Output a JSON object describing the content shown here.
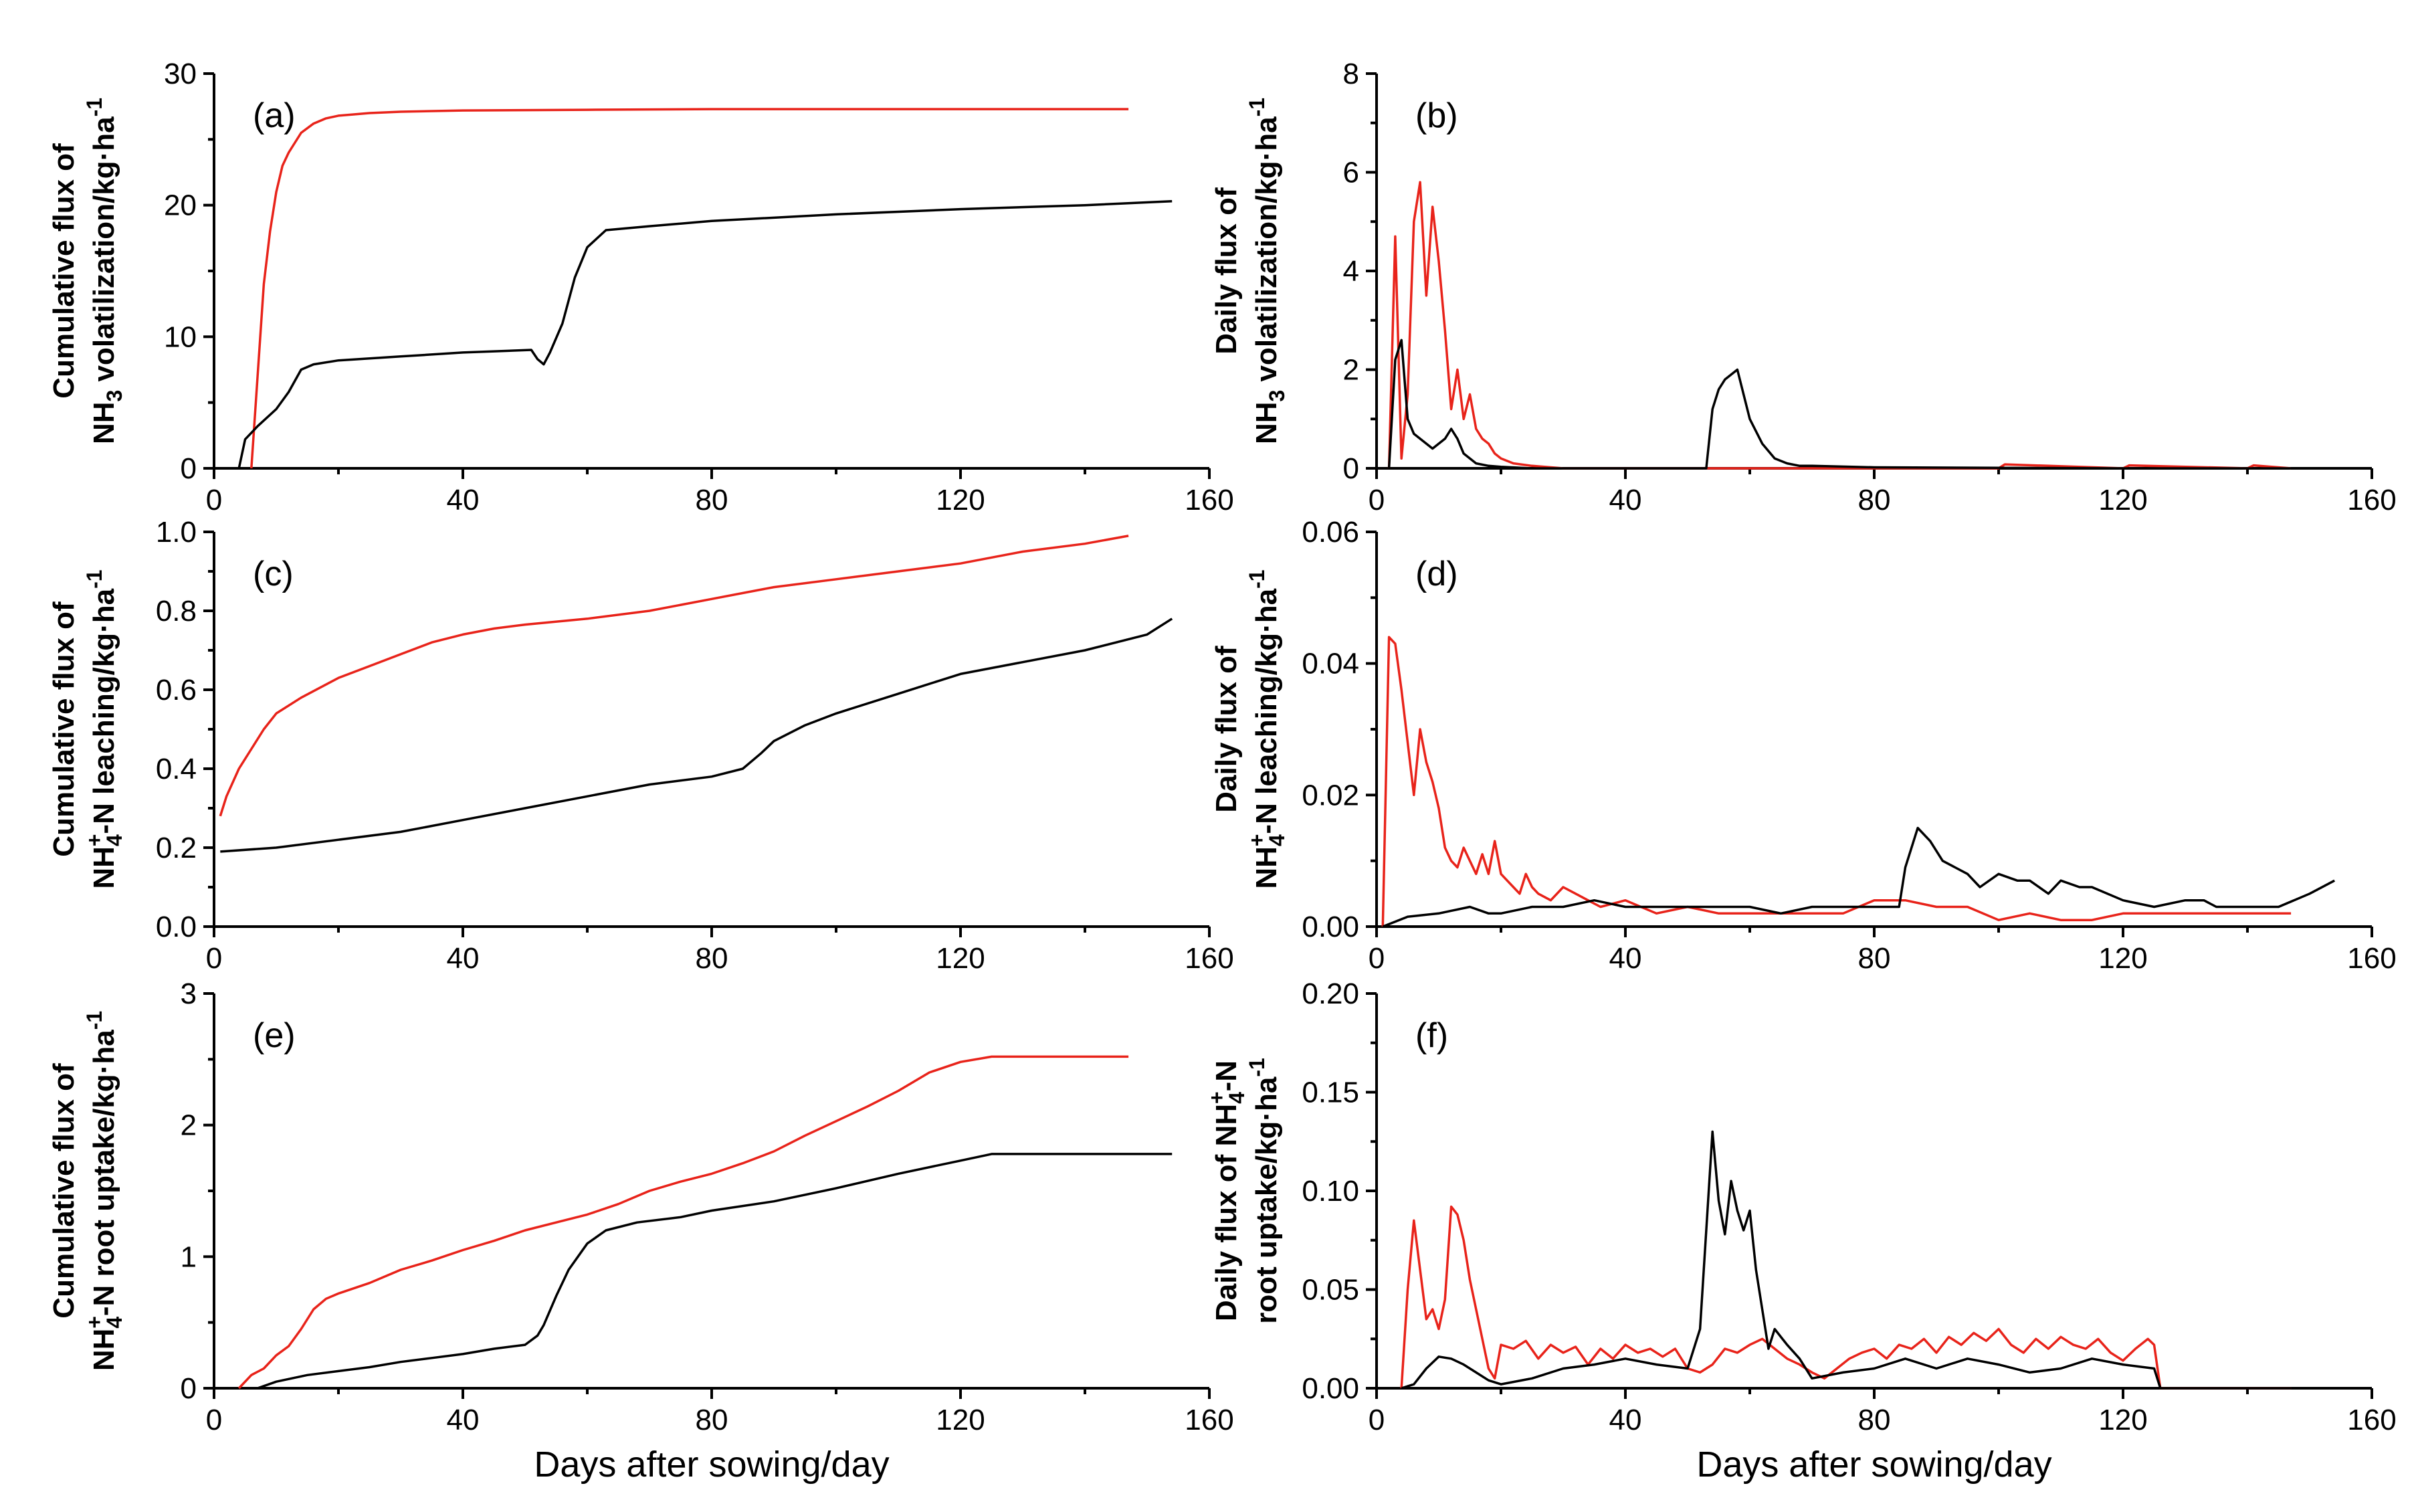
{
  "figure": {
    "xlabel": "Days after sowing/day",
    "series_colors": {
      "red": "#e8231a",
      "black": "#000000"
    }
  },
  "chart_data": [
    {
      "id": "a",
      "type": "line",
      "panel_label": "(a)",
      "ylabel_line1": "Cumulative flux of",
      "ylabel_line2": "NH3 volatilization/kg·ha-1",
      "xlim": [
        0,
        160
      ],
      "ylim": [
        0,
        30
      ],
      "xticks": [
        0,
        40,
        80,
        120,
        160
      ],
      "yticks": [
        0,
        10,
        20,
        30
      ],
      "series": [
        {
          "name": "red",
          "color": "#e8231a",
          "x": [
            6,
            7,
            8,
            9,
            10,
            11,
            12,
            14,
            16,
            18,
            20,
            25,
            30,
            40,
            60,
            80,
            100,
            120,
            140,
            147
          ],
          "y": [
            0,
            7,
            14,
            18,
            21,
            23,
            24,
            25.5,
            26.2,
            26.6,
            26.8,
            27,
            27.1,
            27.2,
            27.25,
            27.3,
            27.3,
            27.3,
            27.3,
            27.3
          ]
        },
        {
          "name": "black",
          "color": "#000000",
          "x": [
            4,
            5,
            7,
            10,
            12,
            14,
            16,
            20,
            30,
            40,
            51,
            52,
            53,
            54,
            56,
            58,
            60,
            63,
            70,
            80,
            100,
            120,
            140,
            154
          ],
          "y": [
            0,
            2.2,
            3.2,
            4.5,
            5.8,
            7.5,
            7.9,
            8.2,
            8.5,
            8.8,
            9.0,
            8.3,
            7.9,
            8.8,
            11,
            14.5,
            16.8,
            18.1,
            18.4,
            18.8,
            19.3,
            19.7,
            20.0,
            20.3
          ]
        }
      ]
    },
    {
      "id": "b",
      "type": "line",
      "panel_label": "(b)",
      "ylabel_line1": "Daily flux of",
      "ylabel_line2": "NH3 volatilization/kg·ha-1",
      "xlim": [
        0,
        160
      ],
      "ylim": [
        0,
        8
      ],
      "xticks": [
        0,
        40,
        80,
        120,
        160
      ],
      "yticks": [
        0,
        2,
        4,
        6,
        8
      ],
      "series": [
        {
          "name": "red",
          "color": "#e8231a",
          "x": [
            2,
            3,
            4,
            5,
            6,
            7,
            8,
            9,
            10,
            11,
            12,
            13,
            14,
            15,
            16,
            17,
            18,
            19,
            20,
            22,
            25,
            30,
            40,
            60,
            100,
            101,
            120,
            121,
            140,
            141,
            147
          ],
          "y": [
            0,
            4.7,
            0.2,
            1.5,
            5.0,
            5.8,
            3.5,
            5.3,
            4.2,
            2.8,
            1.2,
            2.0,
            1.0,
            1.5,
            0.8,
            0.6,
            0.5,
            0.3,
            0.2,
            0.1,
            0.05,
            0,
            0,
            0,
            0,
            0.08,
            0,
            0.06,
            0,
            0.06,
            0
          ]
        },
        {
          "name": "black",
          "color": "#000000",
          "x": [
            2,
            3,
            4,
            5,
            6,
            7,
            8,
            9,
            10,
            11,
            12,
            13,
            14,
            15,
            16,
            18,
            20,
            25,
            30,
            40,
            50,
            53,
            54,
            55,
            56,
            57,
            58,
            59,
            60,
            62,
            64,
            66,
            68,
            70,
            80,
            100,
            120,
            140,
            154
          ],
          "y": [
            0,
            2.2,
            2.6,
            1.0,
            0.7,
            0.6,
            0.5,
            0.4,
            0.5,
            0.6,
            0.8,
            0.6,
            0.3,
            0.2,
            0.1,
            0.05,
            0.03,
            0,
            0,
            0,
            0,
            0,
            1.2,
            1.6,
            1.8,
            1.9,
            2.0,
            1.5,
            1.0,
            0.5,
            0.2,
            0.1,
            0.05,
            0.05,
            0.02,
            0.01,
            0,
            0,
            0
          ]
        }
      ]
    },
    {
      "id": "c",
      "type": "line",
      "panel_label": "(c)",
      "ylabel_line1": "Cumulative flux of",
      "ylabel_line2": "NH4+-N leaching/kg·ha-1",
      "xlim": [
        0,
        160
      ],
      "ylim": [
        0,
        1.0
      ],
      "xticks": [
        0,
        40,
        80,
        120,
        160
      ],
      "yticks": [
        0.0,
        0.2,
        0.4,
        0.6,
        0.8,
        1.0
      ],
      "series": [
        {
          "name": "red",
          "color": "#e8231a",
          "x": [
            1,
            2,
            4,
            6,
            8,
            10,
            14,
            20,
            25,
            30,
            35,
            40,
            45,
            50,
            60,
            70,
            80,
            90,
            100,
            110,
            120,
            130,
            140,
            147
          ],
          "y": [
            0.28,
            0.33,
            0.4,
            0.45,
            0.5,
            0.54,
            0.58,
            0.63,
            0.66,
            0.69,
            0.72,
            0.74,
            0.755,
            0.765,
            0.78,
            0.8,
            0.83,
            0.86,
            0.88,
            0.9,
            0.92,
            0.95,
            0.97,
            0.99
          ]
        },
        {
          "name": "black",
          "color": "#000000",
          "x": [
            1,
            10,
            20,
            30,
            40,
            50,
            60,
            70,
            80,
            85,
            88,
            90,
            95,
            100,
            110,
            120,
            130,
            140,
            150,
            154
          ],
          "y": [
            0.19,
            0.2,
            0.22,
            0.24,
            0.27,
            0.3,
            0.33,
            0.36,
            0.38,
            0.4,
            0.44,
            0.47,
            0.51,
            0.54,
            0.59,
            0.64,
            0.67,
            0.7,
            0.74,
            0.78
          ]
        }
      ]
    },
    {
      "id": "d",
      "type": "line",
      "panel_label": "(d)",
      "ylabel_line1": "Daily flux of",
      "ylabel_line2": "NH4+-N leaching/kg·ha-1",
      "xlim": [
        0,
        160
      ],
      "ylim": [
        0,
        0.06
      ],
      "xticks": [
        0,
        40,
        80,
        120,
        160
      ],
      "yticks": [
        0.0,
        0.02,
        0.04,
        0.06
      ],
      "series": [
        {
          "name": "red",
          "color": "#e8231a",
          "x": [
            1,
            2,
            3,
            4,
            5,
            6,
            7,
            8,
            9,
            10,
            11,
            12,
            13,
            14,
            15,
            16,
            17,
            18,
            19,
            20,
            21,
            22,
            23,
            24,
            25,
            26,
            28,
            30,
            32,
            34,
            36,
            40,
            45,
            50,
            55,
            60,
            65,
            70,
            75,
            80,
            85,
            90,
            95,
            100,
            105,
            110,
            115,
            120,
            125,
            130,
            135,
            140,
            147
          ],
          "y": [
            0,
            0.044,
            0.043,
            0.036,
            0.028,
            0.02,
            0.03,
            0.025,
            0.022,
            0.018,
            0.012,
            0.01,
            0.009,
            0.012,
            0.01,
            0.008,
            0.011,
            0.008,
            0.013,
            0.008,
            0.007,
            0.006,
            0.005,
            0.008,
            0.006,
            0.005,
            0.004,
            0.006,
            0.005,
            0.004,
            0.003,
            0.004,
            0.002,
            0.003,
            0.002,
            0.002,
            0.002,
            0.002,
            0.002,
            0.004,
            0.004,
            0.003,
            0.003,
            0.001,
            0.002,
            0.001,
            0.001,
            0.002,
            0.002,
            0.002,
            0.002,
            0.002,
            0.002
          ]
        },
        {
          "name": "black",
          "color": "#000000",
          "x": [
            1,
            5,
            10,
            15,
            18,
            20,
            25,
            30,
            35,
            40,
            45,
            50,
            55,
            60,
            65,
            70,
            75,
            80,
            84,
            85,
            87,
            89,
            91,
            93,
            95,
            97,
            100,
            103,
            105,
            108,
            110,
            113,
            115,
            120,
            125,
            130,
            133,
            135,
            140,
            145,
            150,
            154
          ],
          "y": [
            0,
            0.0015,
            0.002,
            0.003,
            0.002,
            0.002,
            0.003,
            0.003,
            0.004,
            0.003,
            0.003,
            0.003,
            0.003,
            0.003,
            0.002,
            0.003,
            0.003,
            0.003,
            0.003,
            0.009,
            0.015,
            0.013,
            0.01,
            0.009,
            0.008,
            0.006,
            0.008,
            0.007,
            0.007,
            0.005,
            0.007,
            0.006,
            0.006,
            0.004,
            0.003,
            0.004,
            0.004,
            0.003,
            0.003,
            0.003,
            0.005,
            0.007
          ]
        }
      ]
    },
    {
      "id": "e",
      "type": "line",
      "panel_label": "(e)",
      "ylabel_line1": "Cumulative flux of",
      "ylabel_line2": "NH4+-N root uptake/kg·ha-1",
      "xlim": [
        0,
        160
      ],
      "ylim": [
        0,
        3
      ],
      "xticks": [
        0,
        40,
        80,
        120,
        160
      ],
      "yticks": [
        0,
        1,
        2,
        3
      ],
      "series": [
        {
          "name": "red",
          "color": "#e8231a",
          "x": [
            4,
            6,
            8,
            10,
            12,
            14,
            16,
            18,
            20,
            25,
            30,
            35,
            40,
            45,
            50,
            55,
            60,
            65,
            70,
            75,
            80,
            85,
            90,
            95,
            100,
            105,
            110,
            115,
            120,
            125,
            130,
            140,
            147
          ],
          "y": [
            0,
            0.1,
            0.15,
            0.25,
            0.32,
            0.45,
            0.6,
            0.68,
            0.72,
            0.8,
            0.9,
            0.97,
            1.05,
            1.12,
            1.2,
            1.26,
            1.32,
            1.4,
            1.5,
            1.57,
            1.63,
            1.71,
            1.8,
            1.92,
            2.03,
            2.14,
            2.26,
            2.4,
            2.48,
            2.52,
            2.52,
            2.52,
            2.52
          ]
        },
        {
          "name": "black",
          "color": "#000000",
          "x": [
            7,
            10,
            15,
            20,
            25,
            30,
            35,
            40,
            45,
            50,
            52,
            53,
            55,
            57,
            60,
            63,
            68,
            75,
            80,
            90,
            100,
            110,
            120,
            125,
            140,
            154
          ],
          "y": [
            0,
            0.05,
            0.1,
            0.13,
            0.16,
            0.2,
            0.23,
            0.26,
            0.3,
            0.33,
            0.4,
            0.48,
            0.7,
            0.9,
            1.1,
            1.2,
            1.26,
            1.3,
            1.35,
            1.42,
            1.52,
            1.63,
            1.73,
            1.78,
            1.78,
            1.78
          ]
        }
      ]
    },
    {
      "id": "f",
      "type": "line",
      "panel_label": "(f)",
      "ylabel_line1": "Daily flux of NH4+-N",
      "ylabel_line2": "root uptake/kg·ha-1",
      "xlim": [
        0,
        160
      ],
      "ylim": [
        0,
        0.2
      ],
      "xticks": [
        0,
        40,
        80,
        120,
        160
      ],
      "yticks": [
        0.0,
        0.05,
        0.1,
        0.15,
        0.2
      ],
      "series": [
        {
          "name": "red",
          "color": "#e8231a",
          "x": [
            4,
            5,
            6,
            7,
            8,
            9,
            10,
            11,
            12,
            13,
            14,
            15,
            16,
            17,
            18,
            19,
            20,
            22,
            24,
            26,
            28,
            30,
            32,
            34,
            36,
            38,
            40,
            42,
            44,
            46,
            48,
            50,
            52,
            54,
            56,
            58,
            60,
            62,
            64,
            66,
            68,
            70,
            72,
            74,
            76,
            78,
            80,
            82,
            84,
            86,
            88,
            90,
            92,
            94,
            96,
            98,
            100,
            102,
            104,
            106,
            108,
            110,
            112,
            114,
            116,
            118,
            120,
            122,
            124,
            125,
            126,
            130,
            147
          ],
          "y": [
            0,
            0.05,
            0.085,
            0.06,
            0.035,
            0.04,
            0.03,
            0.045,
            0.092,
            0.088,
            0.075,
            0.055,
            0.04,
            0.025,
            0.01,
            0.005,
            0.022,
            0.02,
            0.024,
            0.015,
            0.022,
            0.018,
            0.021,
            0.012,
            0.02,
            0.015,
            0.022,
            0.018,
            0.02,
            0.016,
            0.02,
            0.01,
            0.008,
            0.012,
            0.02,
            0.018,
            0.022,
            0.025,
            0.02,
            0.015,
            0.012,
            0.008,
            0.005,
            0.01,
            0.015,
            0.018,
            0.02,
            0.015,
            0.022,
            0.02,
            0.025,
            0.018,
            0.026,
            0.022,
            0.028,
            0.024,
            0.03,
            0.022,
            0.018,
            0.025,
            0.02,
            0.026,
            0.022,
            0.02,
            0.025,
            0.018,
            0.014,
            0.02,
            0.025,
            0.022,
            0,
            0,
            0
          ]
        },
        {
          "name": "black",
          "color": "#000000",
          "x": [
            4,
            6,
            8,
            10,
            12,
            14,
            16,
            18,
            20,
            25,
            30,
            35,
            40,
            45,
            50,
            52,
            53,
            54,
            55,
            56,
            57,
            58,
            59,
            60,
            61,
            62,
            63,
            64,
            66,
            68,
            70,
            75,
            80,
            85,
            90,
            95,
            100,
            105,
            110,
            115,
            120,
            125,
            126,
            130,
            147
          ],
          "y": [
            0,
            0.002,
            0.01,
            0.016,
            0.015,
            0.012,
            0.008,
            0.004,
            0.002,
            0.005,
            0.01,
            0.012,
            0.015,
            0.012,
            0.01,
            0.03,
            0.08,
            0.13,
            0.095,
            0.078,
            0.105,
            0.09,
            0.08,
            0.09,
            0.06,
            0.04,
            0.02,
            0.03,
            0.022,
            0.015,
            0.005,
            0.008,
            0.01,
            0.015,
            0.01,
            0.015,
            0.012,
            0.008,
            0.01,
            0.015,
            0.012,
            0.01,
            0,
            0,
            0
          ]
        }
      ]
    }
  ]
}
